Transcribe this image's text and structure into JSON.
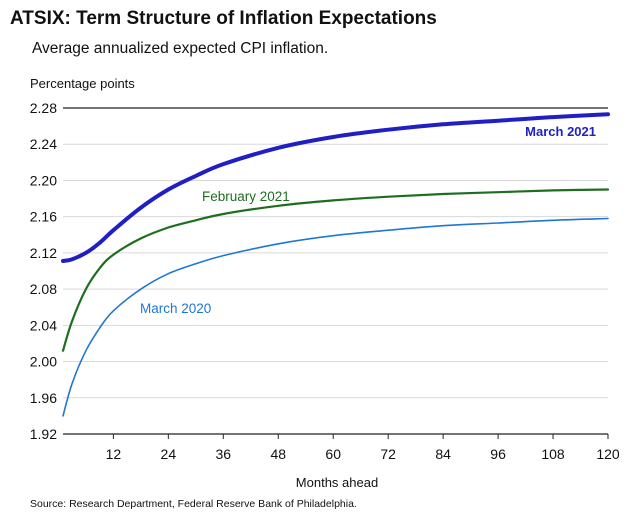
{
  "title": "ATSIX: Term Structure of Inflation Expectations",
  "subtitle": "Average annualized expected CPI inflation.",
  "source": "Source: Research Department, Federal Reserve Bank of Philadelphia.",
  "chart_data": {
    "type": "line",
    "title": "ATSIX: Term Structure of Inflation Expectations",
    "subtitle": "Average annualized expected CPI inflation.",
    "xlabel": "Months ahead",
    "ylabel": "Percentage points",
    "xlim": [
      1,
      120
    ],
    "ylim": [
      1.92,
      2.28
    ],
    "xticks": [
      12,
      24,
      36,
      48,
      60,
      72,
      84,
      96,
      108,
      120
    ],
    "yticks": [
      1.92,
      1.96,
      2.0,
      2.04,
      2.08,
      2.12,
      2.16,
      2.2,
      2.24,
      2.28
    ],
    "grid": "horizontal",
    "series": [
      {
        "name": "March 2021",
        "color": "#1f1fc4",
        "x": [
          1,
          3,
          6,
          9,
          12,
          18,
          24,
          30,
          36,
          48,
          60,
          72,
          84,
          96,
          108,
          120
        ],
        "values": [
          2.111,
          2.113,
          2.12,
          2.131,
          2.145,
          2.17,
          2.19,
          2.205,
          2.218,
          2.236,
          2.248,
          2.256,
          2.262,
          2.266,
          2.27,
          2.273
        ]
      },
      {
        "name": "February 2021",
        "color": "#1f6e1f",
        "x": [
          1,
          3,
          6,
          9,
          12,
          18,
          24,
          30,
          36,
          48,
          60,
          72,
          84,
          96,
          108,
          120
        ],
        "values": [
          2.012,
          2.045,
          2.08,
          2.103,
          2.118,
          2.136,
          2.148,
          2.156,
          2.163,
          2.172,
          2.178,
          2.182,
          2.185,
          2.187,
          2.189,
          2.19
        ]
      },
      {
        "name": "March 2020",
        "color": "#1f77d4",
        "x": [
          1,
          3,
          6,
          9,
          12,
          18,
          24,
          30,
          36,
          48,
          60,
          72,
          84,
          96,
          108,
          120
        ],
        "values": [
          1.94,
          1.976,
          2.012,
          2.037,
          2.056,
          2.08,
          2.097,
          2.108,
          2.117,
          2.13,
          2.139,
          2.145,
          2.15,
          2.153,
          2.156,
          2.158
        ]
      }
    ]
  }
}
